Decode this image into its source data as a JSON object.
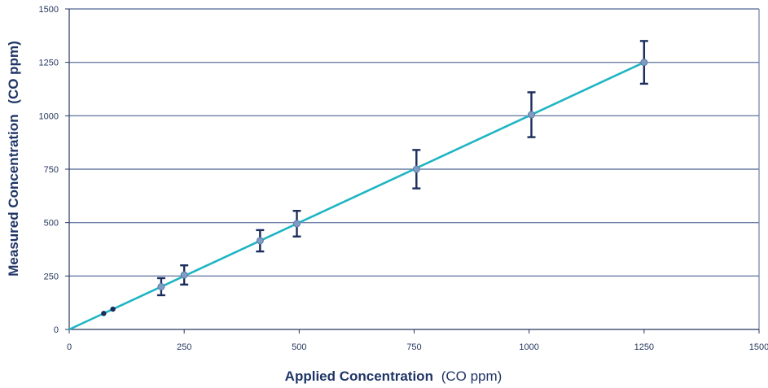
{
  "chart_data": {
    "type": "scatter",
    "xlabel": "Applied Concentration",
    "xlabel_unit": "(CO ppm)",
    "ylabel": "Measured Concentration",
    "ylabel_unit": "(CO ppm)",
    "xlim": [
      0,
      1500
    ],
    "ylim": [
      0,
      1500
    ],
    "x_ticks": [
      "0",
      "250",
      "500",
      "750",
      "1000",
      "1250",
      "1500"
    ],
    "y_ticks": [
      "0",
      "250",
      "500",
      "750",
      "1000",
      "1250",
      "1500"
    ],
    "grid": "horizontal",
    "line": {
      "x": [
        0,
        1250
      ],
      "y": [
        0,
        1250
      ],
      "color": "#1fb5c4"
    },
    "points": [
      {
        "x": 75,
        "y": 75,
        "err": 0
      },
      {
        "x": 95,
        "y": 95,
        "err": 0
      },
      {
        "x": 200,
        "y": 200,
        "err": 40
      },
      {
        "x": 250,
        "y": 255,
        "err": 45
      },
      {
        "x": 415,
        "y": 415,
        "err": 50
      },
      {
        "x": 495,
        "y": 495,
        "err": 60
      },
      {
        "x": 755,
        "y": 750,
        "err": 90
      },
      {
        "x": 1005,
        "y": 1005,
        "err": 105
      },
      {
        "x": 1250,
        "y": 1250,
        "err": 100
      }
    ],
    "colors": {
      "axis": "#26375e",
      "grid": "#6c7fa6",
      "marker": "#7f9cc3",
      "errorbar": "#1a2d5c"
    }
  }
}
